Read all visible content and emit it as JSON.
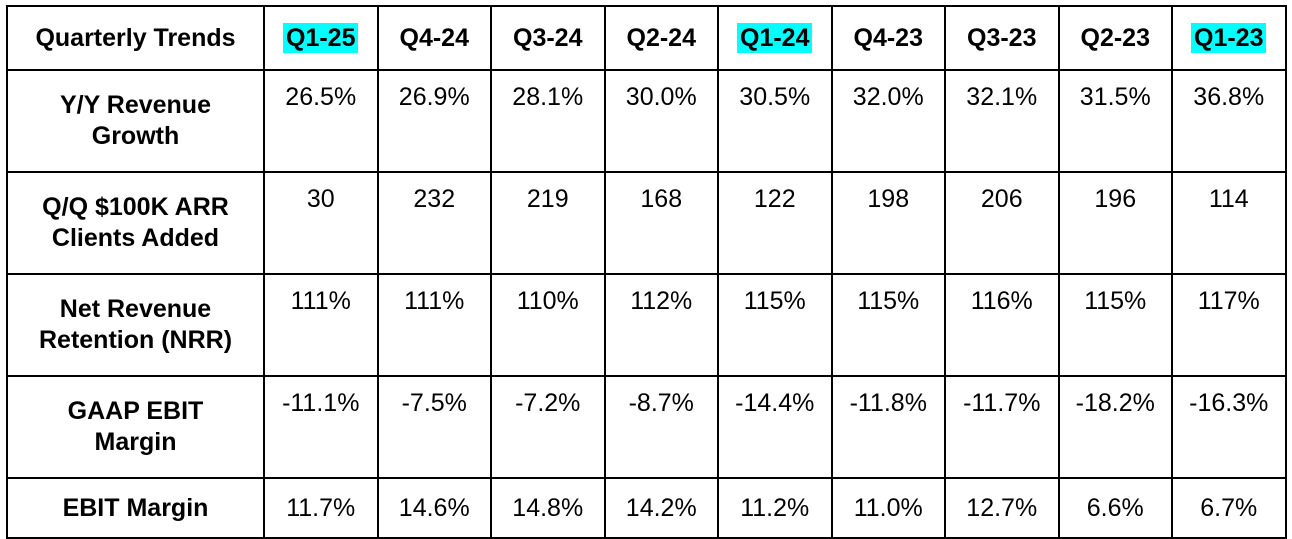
{
  "table": {
    "corner_label": "Quarterly Trends",
    "highlight_color": "#00ffff",
    "quarters": [
      {
        "label": "Q1-25",
        "highlighted": true
      },
      {
        "label": "Q4-24",
        "highlighted": false
      },
      {
        "label": "Q3-24",
        "highlighted": false
      },
      {
        "label": "Q2-24",
        "highlighted": false
      },
      {
        "label": "Q1-24",
        "highlighted": true
      },
      {
        "label": "Q4-23",
        "highlighted": false
      },
      {
        "label": "Q3-23",
        "highlighted": false
      },
      {
        "label": "Q2-23",
        "highlighted": false
      },
      {
        "label": "Q1-23",
        "highlighted": true
      }
    ],
    "rows": [
      {
        "label_lines": [
          "Y/Y Revenue",
          "Growth"
        ],
        "values": [
          "26.5%",
          "26.9%",
          "28.1%",
          "30.0%",
          "30.5%",
          "32.0%",
          "32.1%",
          "31.5%",
          "36.8%"
        ]
      },
      {
        "label_lines": [
          "Q/Q $100K ARR",
          "Clients Added"
        ],
        "values": [
          "30",
          "232",
          "219",
          "168",
          "122",
          "198",
          "206",
          "196",
          "114"
        ]
      },
      {
        "label_lines": [
          "Net Revenue",
          "Retention (NRR)"
        ],
        "values": [
          "111%",
          "111%",
          "110%",
          "112%",
          "115%",
          "115%",
          "116%",
          "115%",
          "117%"
        ]
      },
      {
        "label_lines": [
          "GAAP EBIT",
          "Margin"
        ],
        "values": [
          "-11.1%",
          "-7.5%",
          "-7.2%",
          "-8.7%",
          "-14.4%",
          "-11.8%",
          "-11.7%",
          "-18.2%",
          "-16.3%"
        ]
      },
      {
        "label_lines": [
          "EBIT Margin"
        ],
        "values": [
          "11.7%",
          "14.6%",
          "14.8%",
          "14.2%",
          "11.2%",
          "11.0%",
          "12.7%",
          "6.6%",
          "6.7%"
        ]
      }
    ]
  }
}
